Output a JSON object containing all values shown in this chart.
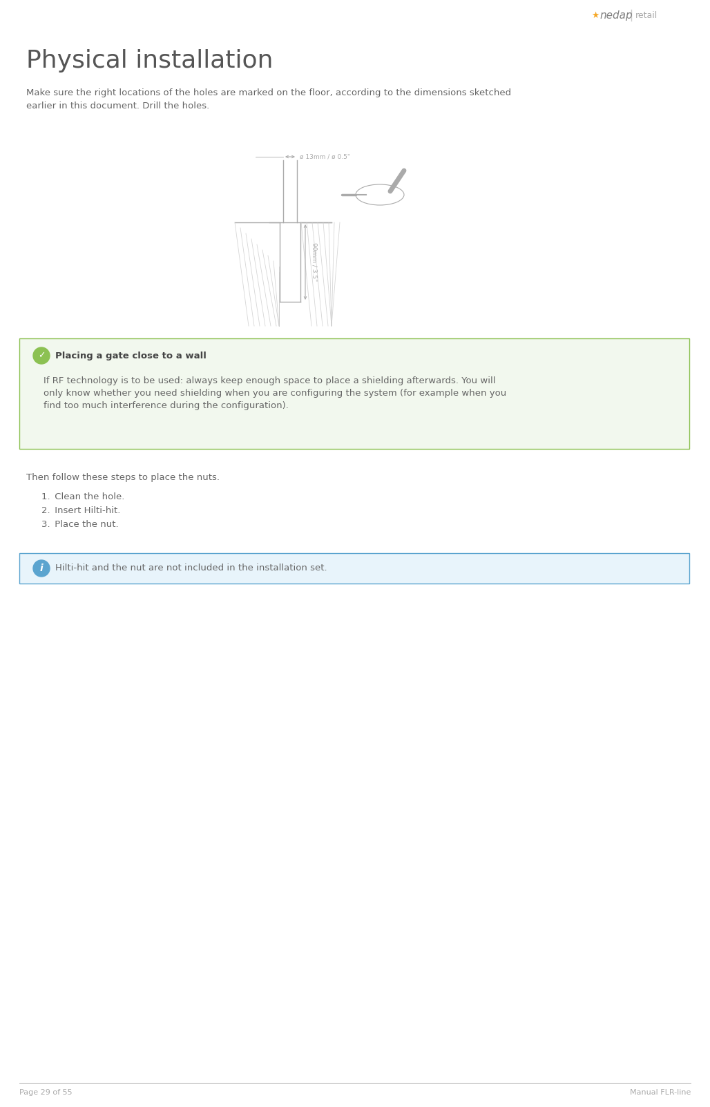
{
  "page_bg": "#ffffff",
  "logo_star_color": "#f5a623",
  "logo_nedap_color": "#808080",
  "logo_retail_color": "#aaaaaa",
  "footer_line_color": "#aaaaaa",
  "footer_left": "Page 29 of 55",
  "footer_right": "Manual FLR-line",
  "footer_color": "#aaaaaa",
  "title": "Physical installation",
  "title_color": "#555555",
  "title_fontsize": 26,
  "body_color": "#666666",
  "body_fontsize": 9.5,
  "para1_line1": "Make sure the right locations of the holes are marked on the floor, according to the dimensions sketched",
  "para1_line2": "earlier in this document. Drill the holes.",
  "para2": "Then follow these steps to place the nuts.",
  "list_items": [
    "Clean the hole.",
    "Insert Hilti-hit.",
    "Place the nut."
  ],
  "green_box_bg": "#f2f8ee",
  "green_box_border": "#8cc152",
  "green_box_title": "Placing a gate close to a wall",
  "green_box_body_line1": "If RF technology is to be used: always keep enough space to place a shielding afterwards. You will",
  "green_box_body_line2": "only know whether you need shielding when you are configuring the system (for example when you",
  "green_box_body_line3": "find too much interference during the configuration).",
  "blue_box_bg": "#e8f4fb",
  "blue_box_border": "#5ba4cf",
  "blue_box_body": "Hilti-hit and the nut are not included in the installation set.",
  "draw_color": "#aaaaaa",
  "draw_label_dim": "ø 13mm / ø 0.5\"",
  "draw_label_depth": "90mm / 3.5\""
}
